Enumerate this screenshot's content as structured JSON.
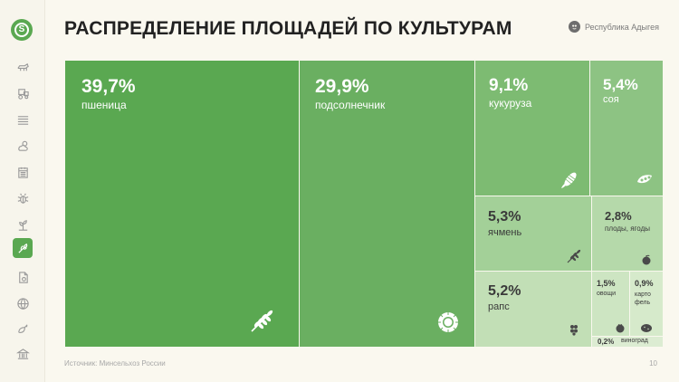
{
  "header": {
    "title": "РАСПРЕДЕЛЕНИЕ ПЛОЩАДЕЙ ПО КУЛЬТУРАМ",
    "region": "Республика Адыгея"
  },
  "logo": {
    "letter": "S"
  },
  "sidebar": {
    "items": [
      {
        "icon": "livestock-icon",
        "active": false
      },
      {
        "icon": "tractor-icon",
        "active": false
      },
      {
        "icon": "field-icon",
        "active": false
      },
      {
        "icon": "weather-icon",
        "active": false
      },
      {
        "icon": "calendar-icon",
        "active": false
      },
      {
        "icon": "pest-icon",
        "active": false
      },
      {
        "icon": "plant-icon",
        "active": false
      },
      {
        "icon": "crops-icon",
        "active": true
      },
      {
        "icon": "document-icon",
        "active": false
      },
      {
        "icon": "globe-icon",
        "active": false
      },
      {
        "icon": "vegetables-icon",
        "active": false
      },
      {
        "icon": "bank-icon",
        "active": false
      }
    ]
  },
  "treemap": {
    "tiles": [
      {
        "id": "wheat",
        "percent": "39,7%",
        "label": "пшеница",
        "icon": "wheat-icon",
        "color": "#5aa851"
      },
      {
        "id": "sunflower",
        "percent": "29,9%",
        "label": "подсолнечник",
        "icon": "sunflower-icon",
        "color": "#6aaf61"
      },
      {
        "id": "corn",
        "percent": "9,1%",
        "label": "кукуруза",
        "icon": "corn-icon",
        "color": "#7dbb72"
      },
      {
        "id": "soy",
        "percent": "5,4%",
        "label": "соя",
        "icon": "soy-icon",
        "color": "#8dc383"
      },
      {
        "id": "barley",
        "percent": "5,3%",
        "label": "ячмень",
        "icon": "barley-icon",
        "color": "#a3d098"
      },
      {
        "id": "fruits",
        "percent": "2,8%",
        "label": "плоды, ягоды",
        "icon": "fruit-icon",
        "color": "#b5d9aa"
      },
      {
        "id": "rapeseed",
        "percent": "5,2%",
        "label": "рапс",
        "icon": "rapeseed-icon",
        "color": "#c2dfb6"
      },
      {
        "id": "vegetables",
        "percent": "1,5%",
        "label": "овощи",
        "icon": "vegetable-icon",
        "color": "#cde5c2"
      },
      {
        "id": "potato",
        "percent": "0,9%",
        "label": "карто фель",
        "icon": "potato-icon",
        "color": "#d6eacb"
      },
      {
        "id": "grape",
        "percent": "0,2%",
        "label": "виноград",
        "icon": "",
        "color": "#dcecd2"
      }
    ]
  },
  "footer": {
    "source": "Источник: Минсельхоз России",
    "page": "10"
  }
}
